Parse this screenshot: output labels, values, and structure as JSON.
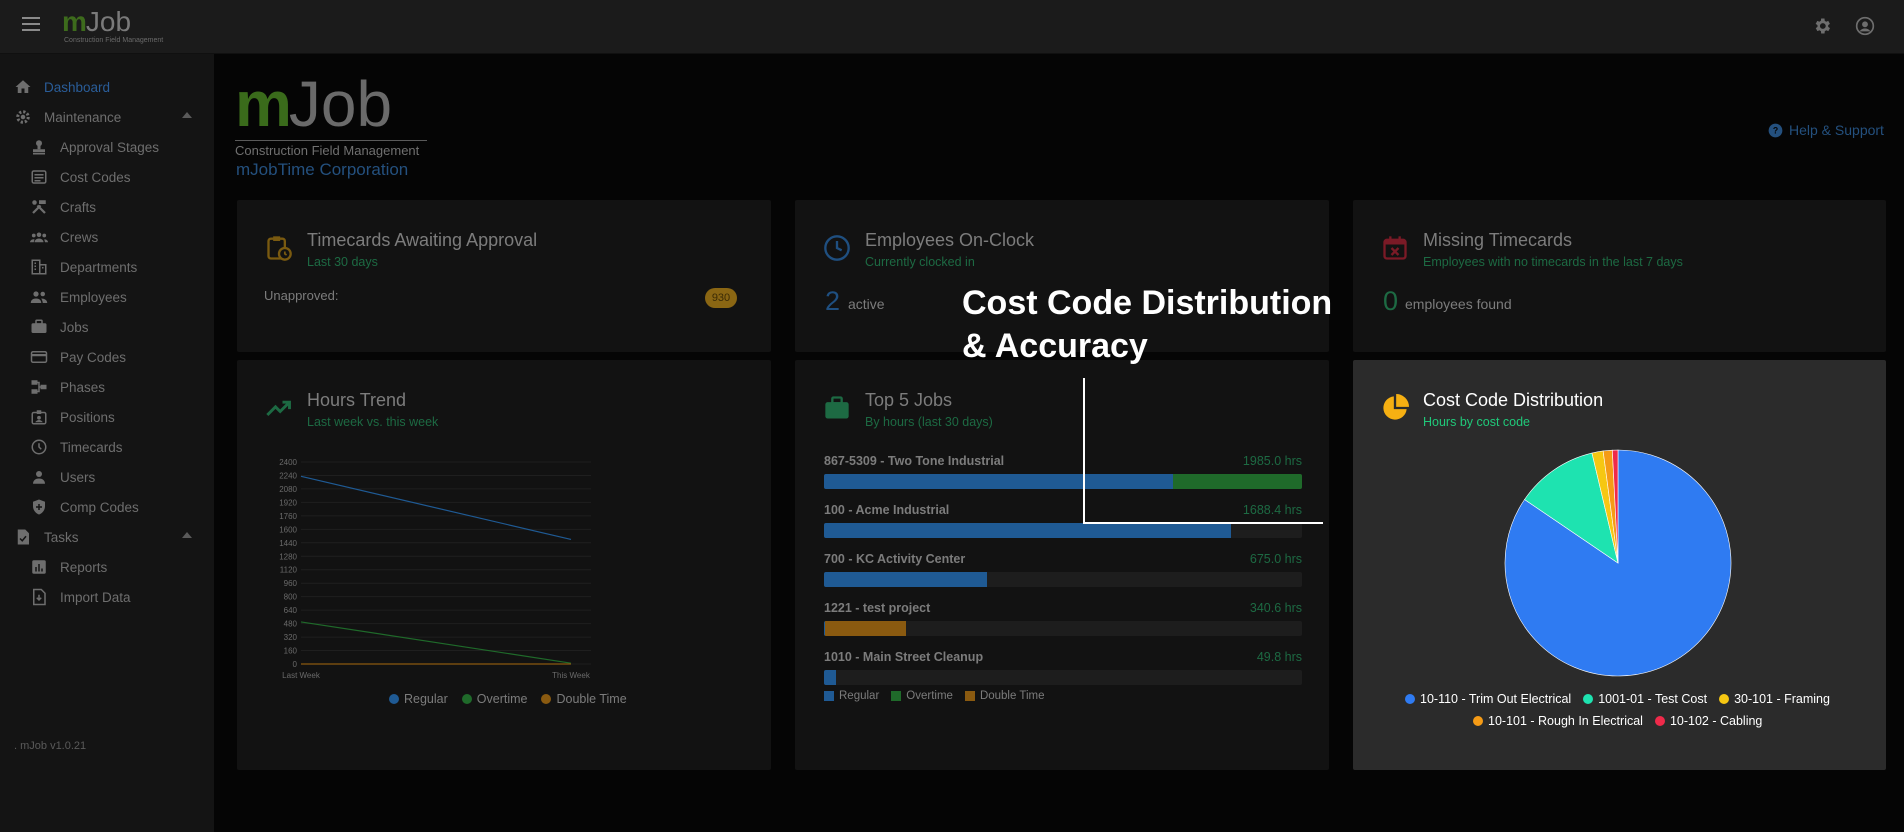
{
  "topbar": {
    "logo_m": "m",
    "logo_job": "Job",
    "logo_tagline": "Construction Field Management"
  },
  "sidebar": {
    "items": [
      {
        "label": "Dashboard",
        "icon": "home-icon",
        "active": true
      },
      {
        "label": "Maintenance",
        "icon": "gear-icon",
        "expanded": true
      },
      {
        "label": "Approval Stages",
        "icon": "stamp-icon"
      },
      {
        "label": "Cost Codes",
        "icon": "list-icon"
      },
      {
        "label": "Crafts",
        "icon": "tools-icon"
      },
      {
        "label": "Crews",
        "icon": "group-icon"
      },
      {
        "label": "Departments",
        "icon": "building-icon"
      },
      {
        "label": "Employees",
        "icon": "people-icon"
      },
      {
        "label": "Jobs",
        "icon": "briefcase-icon"
      },
      {
        "label": "Pay Codes",
        "icon": "credit-card-icon"
      },
      {
        "label": "Phases",
        "icon": "phases-icon"
      },
      {
        "label": "Positions",
        "icon": "badge-icon"
      },
      {
        "label": "Timecards",
        "icon": "clock-icon"
      },
      {
        "label": "Users",
        "icon": "user-icon"
      },
      {
        "label": "Comp Codes",
        "icon": "shield-icon"
      },
      {
        "label": "Tasks",
        "icon": "checklist-icon",
        "expanded": true
      },
      {
        "label": "Reports",
        "icon": "report-icon"
      },
      {
        "label": "Import Data",
        "icon": "import-icon"
      }
    ],
    "version": ". mJob v1.0.21"
  },
  "header": {
    "brand_m": "m",
    "brand_job": "Job",
    "brand_tagline": "Construction Field Management",
    "company": "mJobTime Corporation",
    "help": "Help & Support"
  },
  "cards": {
    "timecards": {
      "title": "Timecards Awaiting Approval",
      "subtitle": "Last 30 days",
      "label": "Unapproved:",
      "badge": "930"
    },
    "onclock": {
      "title": "Employees On-Clock",
      "subtitle": "Currently clocked in",
      "value": "2",
      "suffix": "active"
    },
    "missing": {
      "title": "Missing Timecards",
      "subtitle": "Employees with no timecards in the last 7 days",
      "value": "0",
      "suffix": "employees found"
    },
    "hours": {
      "title": "Hours Trend",
      "subtitle": "Last week vs. this week"
    },
    "jobs": {
      "title": "Top 5 Jobs",
      "subtitle": "By hours (last 30 days)"
    },
    "costcode": {
      "title": "Cost Code Distribution",
      "subtitle": "Hours by cost code"
    }
  },
  "colors": {
    "regular": "#1f5a94",
    "overtime": "#1f6a2a",
    "double": "#8a5a10"
  },
  "chart_data": [
    {
      "type": "line",
      "title": "Hours Trend",
      "categories": [
        "Last Week",
        "This Week"
      ],
      "yticks": [
        "2400",
        "2240",
        "2080",
        "1920",
        "1760",
        "1600",
        "1440",
        "1280",
        "1120",
        "960",
        "800",
        "640",
        "480",
        "320",
        "160",
        "0"
      ],
      "ylim": [
        0,
        2400
      ],
      "series": [
        {
          "name": "Regular",
          "values": [
            2230,
            1480
          ]
        },
        {
          "name": "Overtime",
          "values": [
            500,
            10
          ]
        },
        {
          "name": "Double Time",
          "values": [
            0,
            0
          ]
        }
      ],
      "legend": "bottom"
    },
    {
      "type": "bar",
      "title": "Top 5 Jobs",
      "categories": [
        "867-5309 - Two Tone Industrial",
        "100 - Acme Industrial",
        "700 - KC Activity Center",
        "1221 - test project",
        "1010 - Main Street Cleanup"
      ],
      "labels": [
        "1985.0 hrs",
        "1688.4 hrs",
        "675.0 hrs",
        "340.6 hrs",
        "49.8 hrs"
      ],
      "max": 1985,
      "series": [
        {
          "name": "Regular",
          "values": [
            1450,
            1688.4,
            675,
            5,
            49.8
          ]
        },
        {
          "name": "Overtime",
          "values": [
            535,
            0,
            0,
            0,
            0
          ]
        },
        {
          "name": "Double Time",
          "values": [
            0,
            0,
            0,
            335.6,
            0
          ]
        }
      ],
      "legend": "bottom"
    },
    {
      "type": "pie",
      "title": "Cost Code Distribution",
      "labels": [
        "10-110 - Trim Out Electrical",
        "1001-01 - Test Cost",
        "30-101 - Framing",
        "10-101 - Rough In Electrical",
        "10-102 - Cabling"
      ],
      "values": [
        84.5,
        11.8,
        1.6,
        1.3,
        0.8
      ],
      "colors": [
        "#2f7bf2",
        "#1ee3b0",
        "#f6c712",
        "#f59b16",
        "#ef2a4a"
      ],
      "legend": "bottom"
    }
  ],
  "annotation": {
    "line1": "Cost Code Distribution",
    "line2": "& Accuracy"
  }
}
